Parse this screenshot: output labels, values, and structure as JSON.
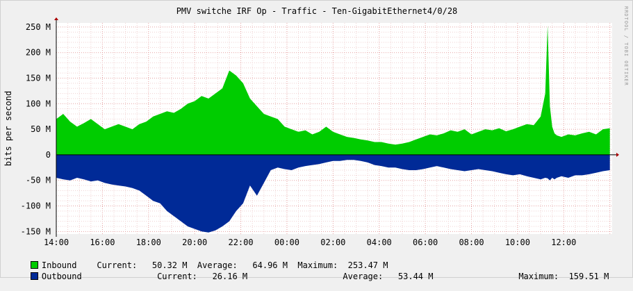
{
  "chart_data": {
    "type": "area",
    "title": "PMV switche IRF Op - Traffic - Ten-GigabitEthernet4/0/28",
    "ylabel": "bits per second",
    "side_label": "RRDTOOL / TOBI OETIKER",
    "x_tick_labels": [
      "14:00",
      "16:00",
      "18:00",
      "20:00",
      "22:00",
      "00:00",
      "02:00",
      "04:00",
      "06:00",
      "08:00",
      "10:00",
      "12:00"
    ],
    "x_start_hour": 14,
    "x_range_hours": [
      0,
      24.1
    ],
    "ylim": [
      -155,
      258
    ],
    "y_ticks": [
      250,
      200,
      150,
      100,
      50,
      0,
      -50,
      -100,
      -150
    ],
    "y_tick_labels": [
      "250 M",
      "200 M",
      "150 M",
      "100 M",
      "50 M",
      "0",
      "-50 M",
      "-100 M",
      "-150 M"
    ],
    "grid": true,
    "inbound": {
      "color": "#00cc00",
      "x_hours": [
        0,
        0.3,
        0.6,
        0.9,
        1.2,
        1.5,
        1.8,
        2.1,
        2.4,
        2.7,
        3.0,
        3.3,
        3.6,
        3.9,
        4.2,
        4.5,
        4.8,
        5.1,
        5.4,
        5.7,
        6.0,
        6.3,
        6.6,
        6.9,
        7.2,
        7.5,
        7.8,
        8.1,
        8.4,
        8.7,
        9.0,
        9.3,
        9.6,
        9.9,
        10.2,
        10.5,
        10.8,
        11.1,
        11.4,
        11.7,
        12.0,
        12.3,
        12.6,
        12.9,
        13.2,
        13.5,
        13.8,
        14.1,
        14.4,
        14.7,
        15.0,
        15.3,
        15.6,
        15.9,
        16.2,
        16.5,
        16.8,
        17.1,
        17.4,
        17.7,
        18.0,
        18.3,
        18.6,
        18.9,
        19.2,
        19.5,
        19.8,
        20.1,
        20.4,
        20.7,
        21.0,
        21.2,
        21.3,
        21.4,
        21.5,
        21.6,
        21.7,
        21.9,
        22.2,
        22.5,
        22.8,
        23.1,
        23.4,
        23.7,
        24.0
      ],
      "values": [
        70,
        80,
        65,
        55,
        62,
        70,
        60,
        50,
        55,
        60,
        55,
        50,
        60,
        65,
        75,
        80,
        85,
        82,
        90,
        100,
        105,
        115,
        110,
        120,
        130,
        165,
        155,
        140,
        110,
        95,
        80,
        75,
        70,
        55,
        50,
        45,
        48,
        40,
        45,
        55,
        45,
        40,
        35,
        33,
        30,
        28,
        25,
        25,
        22,
        20,
        22,
        25,
        30,
        35,
        40,
        38,
        42,
        48,
        45,
        50,
        40,
        45,
        50,
        48,
        52,
        46,
        50,
        55,
        60,
        58,
        75,
        120,
        253,
        95,
        55,
        42,
        38,
        35,
        40,
        38,
        42,
        45,
        40,
        50,
        52
      ]
    },
    "outbound": {
      "color": "#002a97",
      "x_hours": [
        0,
        0.3,
        0.6,
        0.9,
        1.2,
        1.5,
        1.8,
        2.1,
        2.4,
        2.7,
        3.0,
        3.3,
        3.6,
        3.9,
        4.2,
        4.5,
        4.8,
        5.1,
        5.4,
        5.7,
        6.0,
        6.3,
        6.6,
        6.9,
        7.2,
        7.5,
        7.8,
        8.1,
        8.4,
        8.7,
        9.0,
        9.3,
        9.6,
        9.9,
        10.2,
        10.5,
        10.8,
        11.1,
        11.4,
        11.7,
        12.0,
        12.3,
        12.6,
        12.9,
        13.2,
        13.5,
        13.8,
        14.1,
        14.4,
        14.7,
        15.0,
        15.3,
        15.6,
        15.9,
        16.2,
        16.5,
        16.8,
        17.1,
        17.4,
        17.7,
        18.0,
        18.3,
        18.6,
        18.9,
        19.2,
        19.5,
        19.8,
        20.1,
        20.4,
        20.7,
        21.0,
        21.2,
        21.3,
        21.4,
        21.5,
        21.6,
        21.7,
        21.9,
        22.2,
        22.5,
        22.8,
        23.1,
        23.4,
        23.7,
        24.0
      ],
      "values": [
        -45,
        -48,
        -50,
        -45,
        -48,
        -52,
        -50,
        -55,
        -58,
        -60,
        -62,
        -65,
        -70,
        -80,
        -90,
        -95,
        -110,
        -120,
        -130,
        -140,
        -145,
        -150,
        -152,
        -148,
        -140,
        -130,
        -110,
        -95,
        -60,
        -80,
        -55,
        -30,
        -25,
        -28,
        -30,
        -25,
        -22,
        -20,
        -18,
        -15,
        -12,
        -12,
        -10,
        -10,
        -12,
        -15,
        -20,
        -22,
        -25,
        -25,
        -28,
        -30,
        -30,
        -28,
        -25,
        -22,
        -25,
        -28,
        -30,
        -32,
        -30,
        -28,
        -30,
        -32,
        -35,
        -38,
        -40,
        -38,
        -42,
        -45,
        -48,
        -45,
        -46,
        -50,
        -45,
        -48,
        -45,
        -42,
        -45,
        -40,
        -40,
        -38,
        -35,
        -32,
        -30
      ]
    }
  },
  "legend": {
    "inbound": {
      "label": "Inbound",
      "current_label": "Current:",
      "current": "50.32 M",
      "average_label": "Average:",
      "average": "64.96 M",
      "maximum_label": "Maximum:",
      "maximum": "253.47 M",
      "color": "#00cc00"
    },
    "outbound": {
      "label": "Outbound",
      "current_label": "Current:",
      "current": "26.16 M",
      "average_label": "Average:",
      "average": "53.44 M",
      "maximum_label": "Maximum:",
      "maximum": "159.51 M",
      "color": "#002a97"
    }
  }
}
